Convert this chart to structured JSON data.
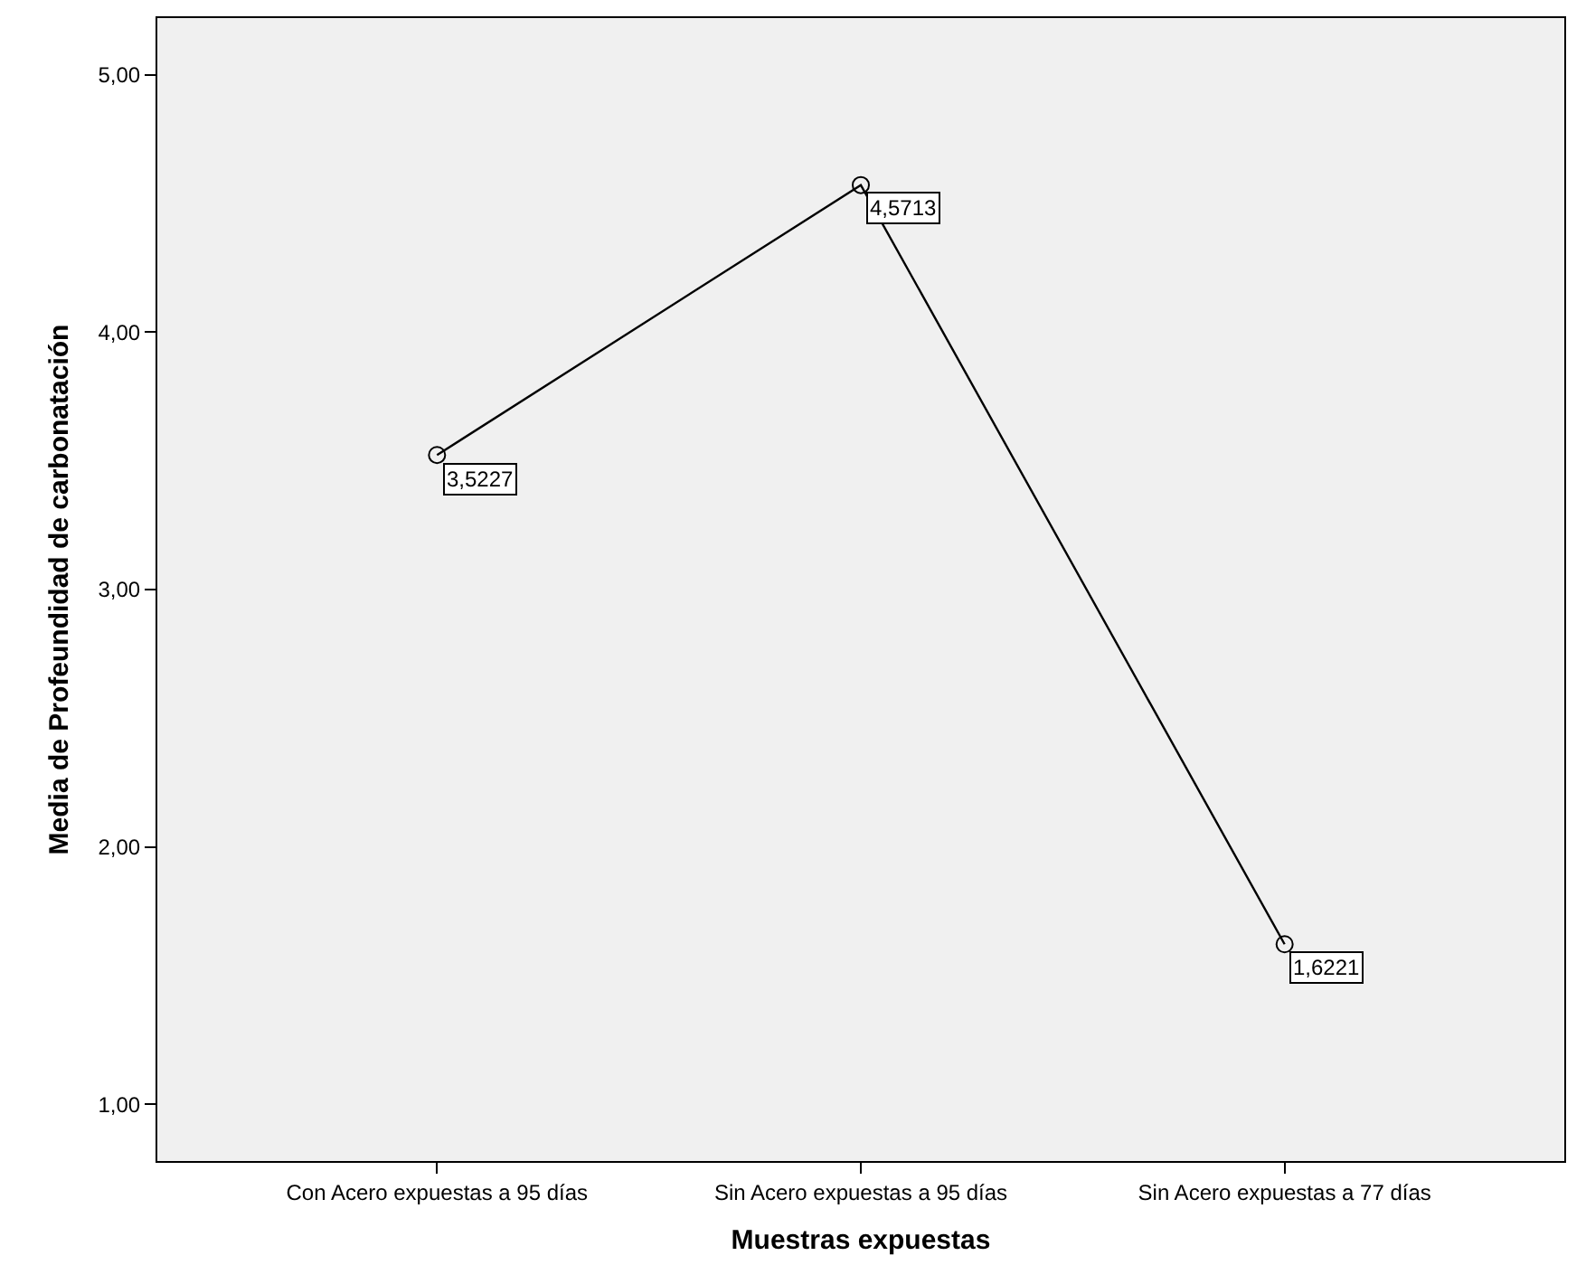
{
  "chart_data": {
    "type": "line",
    "xlabel": "Muestras expuestas",
    "ylabel": "Media de Profeundidad de carbonatación",
    "categories": [
      "Con Acero expuestas a 95 días",
      "Sin Acero expuestas a 95 días",
      "Sin Acero expuestas a 77 días"
    ],
    "series": [
      {
        "color": "#000000",
        "values": [
          3.5227,
          4.5713,
          1.6221
        ],
        "value_labels": [
          "3,5227",
          "4,5713",
          "1,6221"
        ]
      }
    ],
    "ylim": [
      0.78,
      5.22
    ],
    "yticks": [
      {
        "value": 1,
        "label": "1,00"
      },
      {
        "value": 2,
        "label": "2,00"
      },
      {
        "value": 3,
        "label": "3,00"
      },
      {
        "value": 4,
        "label": "4,00"
      },
      {
        "value": 5,
        "label": "5,00"
      }
    ],
    "marker": "circle",
    "line_style": "solid",
    "grid": false
  }
}
